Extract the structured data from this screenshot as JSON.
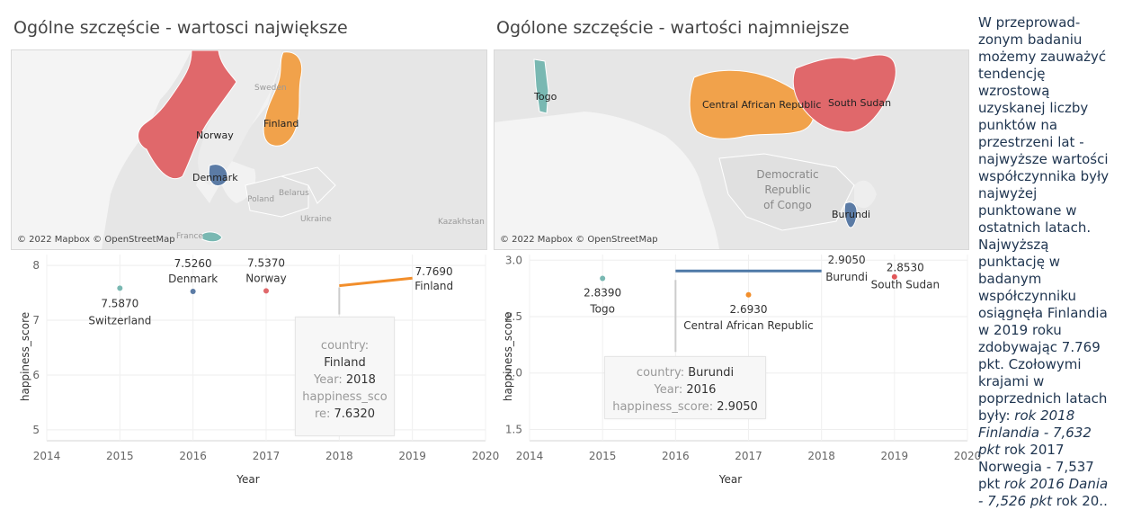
{
  "left_panel": {
    "title": "Ogólne szczęście - wartosci największe",
    "map": {
      "credit": "© 2022 Mapbox © OpenStreetMap",
      "country_labels": [
        "Finland",
        "Norway",
        "Denmark"
      ],
      "base_labels": [
        "Sweden",
        "Poland",
        "Belarus",
        "Ukraine",
        "Kazakhstan",
        "France"
      ],
      "colors": {
        "Finland": "#f1a24b",
        "Norway": "#e0686b",
        "Denmark": "#5b7ba5",
        "Switzerland": "#79b8b2"
      }
    },
    "tooltip": {
      "country_key": "country:",
      "country_value": "Finland",
      "year_key": "Year:",
      "year_value": "2018",
      "score_key_line1": "happiness_sco",
      "score_key_line2": "re:",
      "score_value": "7.6320"
    }
  },
  "right_panel": {
    "title": "Ogólone szczęście - wartości najmniejsze",
    "map": {
      "credit": "© 2022 Mapbox © OpenStreetMap",
      "country_labels": [
        "Togo",
        "Central African Republic",
        "South Sudan",
        "Burundi"
      ],
      "base_label": [
        "Democratic",
        "Republic",
        "of Congo"
      ],
      "colors": {
        "Togo": "#79b8b2",
        "Central African Republic": "#f1a24b",
        "South Sudan": "#e0686b",
        "Burundi": "#5b7ba5"
      }
    },
    "tooltip": {
      "country_key": "country:",
      "country_value": "Burundi",
      "year_key": "Year:",
      "year_value": "2016",
      "score_key": "happiness_score:",
      "score_value": "2.9050"
    }
  },
  "narrative": {
    "part1": "W przeprowad-zonym badaniu możemy zauważyć tendencję wzrostową uzyskanej liczby punktów na przestrzeni lat - najwyższe wartości współczynnika były najwyżej punktowane w ostatnich latach. Najwyższą punktację w badanym współczynniku osiągnęła Finlandia w 2019 roku zdobywając 7.769 pkt. Czołowymi krajami w poprzednich latach były: ",
    "italic1": "rok 2018 Finlandia - 7,632 pkt",
    "part2": " rok 2017 Norwegia - 7,537 pkt ",
    "italic2": "rok 2016 Dania - 7,526 pkt",
    "part3": " rok 20.."
  },
  "chart_data": [
    {
      "type": "scatter",
      "xlabel": "Year",
      "ylabel": "happiness_score",
      "xlim": [
        2014,
        2020
      ],
      "ylim": [
        4.8,
        8.2
      ],
      "xticks": [
        "2014",
        "2015",
        "2016",
        "2017",
        "2018",
        "2019",
        "2020"
      ],
      "yticks": [
        "5",
        "6",
        "7",
        "8"
      ],
      "grid": true,
      "points": [
        {
          "country": "Switzerland",
          "year": 2015,
          "score": 7.587,
          "value_label": "7.5870",
          "color": "#79b8b2"
        },
        {
          "country": "Denmark",
          "year": 2016,
          "score": 7.526,
          "value_label": "7.5260",
          "color": "#5b7ba5"
        },
        {
          "country": "Norway",
          "year": 2017,
          "score": 7.537,
          "value_label": "7.5370",
          "color": "#e0686b"
        }
      ],
      "line": {
        "country": "Finland",
        "x": [
          2018,
          2019
        ],
        "y": [
          7.632,
          7.769
        ],
        "value_label": "7.7690",
        "color": "#f28e2b"
      }
    },
    {
      "type": "scatter",
      "xlabel": "Year",
      "ylabel": "happiness_score",
      "xlim": [
        2014,
        2020
      ],
      "ylim": [
        1.4,
        3.05
      ],
      "xticks": [
        "2014",
        "2015",
        "2016",
        "2017",
        "2018",
        "2019",
        "2020"
      ],
      "yticks": [
        "1.5",
        "2.0",
        "2.5",
        "3.0"
      ],
      "grid": true,
      "points": [
        {
          "country": "Togo",
          "year": 2015,
          "score": 2.839,
          "value_label": "2.8390",
          "color": "#79b8b2"
        },
        {
          "country": "Central African Republic",
          "year": 2017,
          "score": 2.693,
          "value_label": "2.6930",
          "color": "#f28e2b"
        },
        {
          "country": "South Sudan",
          "year": 2019,
          "score": 2.853,
          "value_label": "2.8530",
          "color": "#e15759"
        }
      ],
      "line": {
        "country": "Burundi",
        "x": [
          2016,
          2018
        ],
        "y": [
          2.905,
          2.905
        ],
        "value_label": "2.9050",
        "color": "#4e79a7"
      }
    }
  ]
}
